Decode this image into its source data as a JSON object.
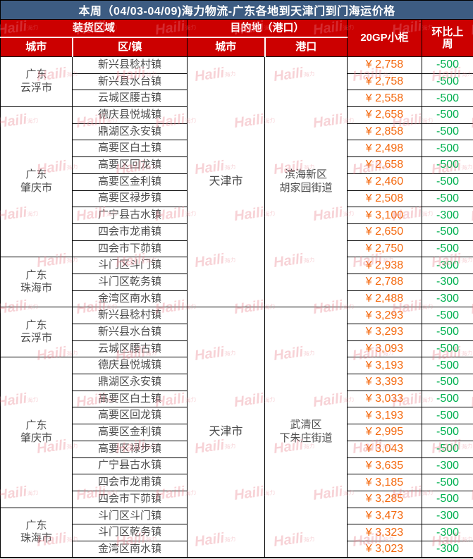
{
  "title": "本周（04/03-04/09)海力物流-广东各地到天津门到门海运价格",
  "header": {
    "loading_group": "装货区域",
    "dest_group": "目的地（港口）",
    "container": "20GP小柜",
    "wow": "环比上周",
    "sub_city": "城市",
    "sub_town": "区/镇",
    "sub_dest_city": "城市",
    "sub_port": "港口"
  },
  "watermark": {
    "text": "Haili",
    "suffix": "海力"
  },
  "colors": {
    "title_bg": "#3d5c82",
    "header_bg": "#cc0000",
    "price_orange": "#f4690f",
    "change_green": "#00b050",
    "body_text": "#4c4c4c"
  },
  "sections": [
    {
      "dest_city": "天津市",
      "port_lines": [
        "滨海新区",
        "胡家园街道"
      ],
      "groups": [
        {
          "city_lines": [
            "广东",
            "云浮市"
          ],
          "rows": [
            {
              "town": "新兴县稔村镇",
              "price": "¥ 2,758",
              "change": "-500"
            },
            {
              "town": "新兴县水台镇",
              "price": "¥ 2,758",
              "change": "-500"
            },
            {
              "town": "云城区腰古镇",
              "price": "¥ 2,558",
              "change": "-500"
            }
          ]
        },
        {
          "city_lines": [
            "广东",
            "肇庆市"
          ],
          "rows": [
            {
              "town": "德庆县悦城镇",
              "price": "¥ 2,658",
              "change": "-500"
            },
            {
              "town": "鼎湖区永安镇",
              "price": "¥ 2,858",
              "change": "-500"
            },
            {
              "town": "高要区白土镇",
              "price": "¥ 2,498",
              "change": "-500"
            },
            {
              "town": "高要区回龙镇",
              "price": "¥ 2,658",
              "change": "-500"
            },
            {
              "town": "高要区金利镇",
              "price": "¥ 2,460",
              "change": "-500"
            },
            {
              "town": "高要区禄步镇",
              "price": "¥ 2,508",
              "change": "-500"
            },
            {
              "town": "广宁县古水镇",
              "price": "¥ 3,100",
              "change": "-300"
            },
            {
              "town": "四会市龙甫镇",
              "price": "¥ 2,650",
              "change": "-500"
            },
            {
              "town": "四会市下茆镇",
              "price": "¥ 2,750",
              "change": "-500"
            }
          ]
        },
        {
          "city_lines": [
            "广东",
            "珠海市"
          ],
          "rows": [
            {
              "town": "斗门区斗门镇",
              "price": "¥ 2,938",
              "change": "-300"
            },
            {
              "town": "斗门区乾务镇",
              "price": "¥ 2,788",
              "change": "-300"
            },
            {
              "town": "金湾区南水镇",
              "price": "¥ 2,488",
              "change": "-300"
            }
          ]
        }
      ]
    },
    {
      "dest_city": "天津市",
      "port_lines": [
        "武清区",
        "下朱庄街道"
      ],
      "groups": [
        {
          "city_lines": [
            "广东",
            "云浮市"
          ],
          "rows": [
            {
              "town": "新兴县稔村镇",
              "price": "¥ 3,293",
              "change": "-500"
            },
            {
              "town": "新兴县水台镇",
              "price": "¥ 3,293",
              "change": "-500"
            },
            {
              "town": "云城区腰古镇",
              "price": "¥ 3,093",
              "change": "-500"
            }
          ]
        },
        {
          "city_lines": [
            "广东",
            "肇庆市"
          ],
          "rows": [
            {
              "town": "德庆县悦城镇",
              "price": "¥ 3,193",
              "change": "-500"
            },
            {
              "town": "鼎湖区永安镇",
              "price": "¥ 3,393",
              "change": "-500"
            },
            {
              "town": "高要区白土镇",
              "price": "¥ 3,033",
              "change": "-500"
            },
            {
              "town": "高要区回龙镇",
              "price": "¥ 3,193",
              "change": "-500"
            },
            {
              "town": "高要区金利镇",
              "price": "¥ 2,995",
              "change": "-500"
            },
            {
              "town": "高要区禄步镇",
              "price": "¥ 3,043",
              "change": "-500"
            },
            {
              "town": "广宁县古水镇",
              "price": "¥ 3,635",
              "change": "-300"
            },
            {
              "town": "四会市龙甫镇",
              "price": "¥ 3,185",
              "change": "-500"
            },
            {
              "town": "四会市下茆镇",
              "price": "¥ 3,285",
              "change": "-500"
            }
          ]
        },
        {
          "city_lines": [
            "广东",
            "珠海市"
          ],
          "rows": [
            {
              "town": "斗门区斗门镇",
              "price": "¥ 3,473",
              "change": "-300"
            },
            {
              "town": "斗门区乾务镇",
              "price": "¥ 3,323",
              "change": "-300"
            },
            {
              "town": "金湾区南水镇",
              "price": "¥ 3,023",
              "change": "-300"
            }
          ]
        }
      ]
    }
  ]
}
